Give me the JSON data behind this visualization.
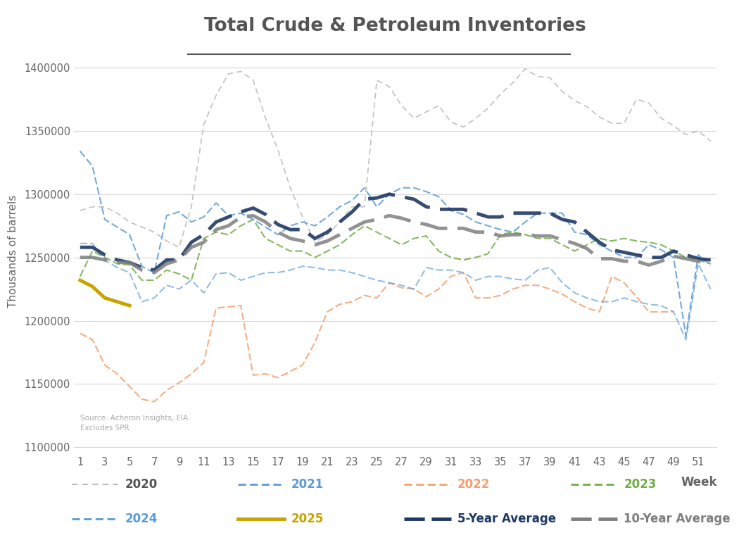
{
  "title": "Total Crude & Petroleum Inventories",
  "ylabel": "Thousands of barrels",
  "xlabel": "Week",
  "source_text": "Source: Acheron Insights, EIA\nExcludes SPR",
  "ylim": [
    1095000,
    1415000
  ],
  "yticks": [
    1100000,
    1150000,
    1200000,
    1250000,
    1300000,
    1350000,
    1400000
  ],
  "series_2020": [
    1287000,
    1290000,
    1290000,
    1285000,
    1278000,
    1274000,
    1270000,
    1263000,
    1258000,
    1290000,
    1355000,
    1378000,
    1395000,
    1397000,
    1390000,
    1360000,
    1335000,
    1305000,
    1282000,
    1262000,
    1268000,
    1278000,
    1290000,
    1290000,
    1390000,
    1385000,
    1370000,
    1360000,
    1365000,
    1370000,
    1357000,
    1353000,
    1360000,
    1368000,
    1379000,
    1388000,
    1399000,
    1393000,
    1392000,
    1381000,
    1374000,
    1369000,
    1361000,
    1356000,
    1356000,
    1375000,
    1372000,
    1360000,
    1354000,
    1347000,
    1350000,
    1342000
  ],
  "series_2021": [
    1334000,
    1322000,
    1280000,
    1274000,
    1268000,
    1243000,
    1238000,
    1283000,
    1286000,
    1278000,
    1282000,
    1293000,
    1283000,
    1285000,
    1280000,
    1274000,
    1268000,
    1275000,
    1278000,
    1275000,
    1282000,
    1290000,
    1295000,
    1305000,
    1290000,
    1300000,
    1305000,
    1305000,
    1302000,
    1298000,
    1287000,
    1284000,
    1278000,
    1275000,
    1272000,
    1270000,
    1278000,
    1285000,
    1285000,
    1285000,
    1270000,
    1268000,
    1260000,
    1255000,
    1250000,
    1250000,
    1260000,
    1256000,
    1250000,
    1188000,
    1252000,
    1244000
  ],
  "series_2022": [
    1190000,
    1185000,
    1165000,
    1158000,
    1148000,
    1138000,
    1136000,
    1145000,
    1151000,
    1158000,
    1167000,
    1210000,
    1211000,
    1212000,
    1157000,
    1158000,
    1155000,
    1160000,
    1165000,
    1183000,
    1207000,
    1213000,
    1215000,
    1220000,
    1218000,
    1230000,
    1226000,
    1225000,
    1219000,
    1225000,
    1235000,
    1238000,
    1218000,
    1218000,
    1220000,
    1225000,
    1228000,
    1228000,
    1225000,
    1221000,
    1215000,
    1210000,
    1207000,
    1235000,
    1230000,
    1219000,
    1207000,
    1207000,
    1207000
  ],
  "series_2023": [
    1235000,
    1255000,
    1250000,
    1245000,
    1244000,
    1232000,
    1232000,
    1240000,
    1237000,
    1232000,
    1265000,
    1270000,
    1268000,
    1275000,
    1280000,
    1265000,
    1260000,
    1255000,
    1255000,
    1250000,
    1255000,
    1260000,
    1268000,
    1275000,
    1270000,
    1265000,
    1260000,
    1265000,
    1267000,
    1255000,
    1250000,
    1248000,
    1250000,
    1253000,
    1268000,
    1270000,
    1268000,
    1265000,
    1265000,
    1260000,
    1255000,
    1260000,
    1265000,
    1263000,
    1265000,
    1263000,
    1262000,
    1260000,
    1255000,
    1250000,
    1248000,
    1245000
  ],
  "series_2024": [
    1261000,
    1261000,
    1248000,
    1242000,
    1238000,
    1215000,
    1218000,
    1228000,
    1225000,
    1232000,
    1222000,
    1237000,
    1238000,
    1232000,
    1235000,
    1238000,
    1238000,
    1240000,
    1243000,
    1242000,
    1240000,
    1240000,
    1238000,
    1235000,
    1232000,
    1230000,
    1228000,
    1225000,
    1242000,
    1240000,
    1240000,
    1238000,
    1232000,
    1235000,
    1235000,
    1233000,
    1232000,
    1240000,
    1242000,
    1230000,
    1222000,
    1218000,
    1215000,
    1215000,
    1218000,
    1215000,
    1213000,
    1212000,
    1207000,
    1185000,
    1245000,
    1225000
  ],
  "series_2025": [
    1232000,
    1227000,
    1218000,
    1215000,
    1212000
  ],
  "weeks_2025": [
    1,
    2,
    3,
    4,
    5
  ],
  "series_5yr_avg": [
    1258000,
    1258000,
    1252000,
    1248000,
    1246000,
    1242000,
    1240000,
    1248000,
    1248000,
    1262000,
    1268000,
    1278000,
    1282000,
    1286000,
    1289000,
    1284000,
    1276000,
    1272000,
    1272000,
    1265000,
    1270000,
    1278000,
    1286000,
    1296000,
    1297000,
    1300000,
    1298000,
    1296000,
    1290000,
    1288000,
    1288000,
    1288000,
    1285000,
    1282000,
    1282000,
    1285000,
    1285000,
    1285000,
    1285000,
    1280000,
    1278000,
    1270000,
    1262000,
    1256000,
    1254000,
    1252000,
    1250000,
    1250000,
    1255000,
    1252000,
    1249000,
    1248000
  ],
  "series_10yr_avg": [
    1250000,
    1250000,
    1248000,
    1246000,
    1246000,
    1240000,
    1238000,
    1245000,
    1248000,
    1258000,
    1262000,
    1272000,
    1275000,
    1282000,
    1283000,
    1278000,
    1270000,
    1265000,
    1263000,
    1260000,
    1263000,
    1268000,
    1273000,
    1278000,
    1280000,
    1283000,
    1281000,
    1278000,
    1276000,
    1273000,
    1273000,
    1273000,
    1270000,
    1270000,
    1267000,
    1268000,
    1268000,
    1267000,
    1267000,
    1264000,
    1261000,
    1257000,
    1249000,
    1249000,
    1247000,
    1247000,
    1244000,
    1247000,
    1251000,
    1249000,
    1247000,
    1244000
  ],
  "color_2020": "#bbbbbb",
  "color_2021": "#5b9bd5",
  "color_2022": "#f4a070",
  "color_2023": "#70ad47",
  "color_2024": "#5b9bd5",
  "color_2025": "#c8a200",
  "color_5yr": "#1f3864",
  "color_10yr": "#7f7f7f",
  "bg_color": "#ffffff",
  "text_color": "#666666"
}
